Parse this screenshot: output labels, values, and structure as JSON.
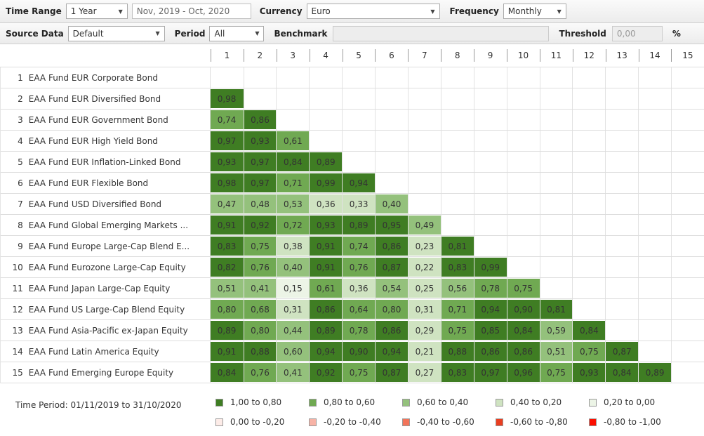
{
  "toolbar1": {
    "time_range_label": "Time Range",
    "time_range_value": "1 Year",
    "date_range_value": "Nov, 2019 - Oct, 2020",
    "currency_label": "Currency",
    "currency_value": "Euro",
    "frequency_label": "Frequency",
    "frequency_value": "Monthly"
  },
  "toolbar2": {
    "source_data_label": "Source Data",
    "source_data_value": "Default",
    "period_label": "Period",
    "period_value": "All",
    "benchmark_label": "Benchmark",
    "benchmark_value": "",
    "threshold_label": "Threshold",
    "threshold_value": "0,00",
    "threshold_unit": "%"
  },
  "band_colors": {
    "1": "#3f7d23",
    "2": "#70a952",
    "3": "#94c17c",
    "4": "#cfe3c1",
    "5": "#ecf4e6"
  },
  "matrix": {
    "column_headers": [
      "1",
      "2",
      "3",
      "4",
      "5",
      "6",
      "7",
      "8",
      "9",
      "10",
      "11",
      "12",
      "13",
      "14",
      "15"
    ],
    "rows": [
      {
        "num": "1",
        "name": "EAA Fund EUR Corporate Bond",
        "values": []
      },
      {
        "num": "2",
        "name": "EAA Fund EUR Diversified Bond",
        "values": [
          {
            "v": "0,98",
            "band": 1
          }
        ]
      },
      {
        "num": "3",
        "name": "EAA Fund EUR Government Bond",
        "values": [
          {
            "v": "0,74",
            "band": 2
          },
          {
            "v": "0,86",
            "band": 1
          }
        ]
      },
      {
        "num": "4",
        "name": "EAA Fund EUR High Yield Bond",
        "values": [
          {
            "v": "0,97",
            "band": 1
          },
          {
            "v": "0,93",
            "band": 1
          },
          {
            "v": "0,61",
            "band": 2
          }
        ]
      },
      {
        "num": "5",
        "name": "EAA Fund EUR Inflation-Linked Bond",
        "values": [
          {
            "v": "0,93",
            "band": 1
          },
          {
            "v": "0,97",
            "band": 1
          },
          {
            "v": "0,84",
            "band": 1
          },
          {
            "v": "0,89",
            "band": 1
          }
        ]
      },
      {
        "num": "6",
        "name": "EAA Fund EUR Flexible Bond",
        "values": [
          {
            "v": "0,98",
            "band": 1
          },
          {
            "v": "0,97",
            "band": 1
          },
          {
            "v": "0,71",
            "band": 2
          },
          {
            "v": "0,99",
            "band": 1
          },
          {
            "v": "0,94",
            "band": 1
          }
        ]
      },
      {
        "num": "7",
        "name": "EAA Fund USD Diversified Bond",
        "values": [
          {
            "v": "0,47",
            "band": 3
          },
          {
            "v": "0,48",
            "band": 3
          },
          {
            "v": "0,53",
            "band": 3
          },
          {
            "v": "0,36",
            "band": 4
          },
          {
            "v": "0,33",
            "band": 4
          },
          {
            "v": "0,40",
            "band": 3
          }
        ]
      },
      {
        "num": "8",
        "name": "EAA Fund Global Emerging Markets ...",
        "values": [
          {
            "v": "0,91",
            "band": 1
          },
          {
            "v": "0,92",
            "band": 1
          },
          {
            "v": "0,72",
            "band": 2
          },
          {
            "v": "0,93",
            "band": 1
          },
          {
            "v": "0,89",
            "band": 1
          },
          {
            "v": "0,95",
            "band": 1
          },
          {
            "v": "0,49",
            "band": 3
          }
        ]
      },
      {
        "num": "9",
        "name": "EAA Fund Europe Large-Cap Blend E...",
        "values": [
          {
            "v": "0,83",
            "band": 1
          },
          {
            "v": "0,75",
            "band": 2
          },
          {
            "v": "0,38",
            "band": 4
          },
          {
            "v": "0,91",
            "band": 1
          },
          {
            "v": "0,74",
            "band": 2
          },
          {
            "v": "0,86",
            "band": 1
          },
          {
            "v": "0,23",
            "band": 4
          },
          {
            "v": "0,81",
            "band": 1
          }
        ]
      },
      {
        "num": "10",
        "name": "EAA Fund Eurozone Large-Cap Equity",
        "values": [
          {
            "v": "0,82",
            "band": 1
          },
          {
            "v": "0,76",
            "band": 2
          },
          {
            "v": "0,40",
            "band": 3
          },
          {
            "v": "0,91",
            "band": 1
          },
          {
            "v": "0,76",
            "band": 2
          },
          {
            "v": "0,87",
            "band": 1
          },
          {
            "v": "0,22",
            "band": 4
          },
          {
            "v": "0,83",
            "band": 1
          },
          {
            "v": "0,99",
            "band": 1
          }
        ]
      },
      {
        "num": "11",
        "name": "EAA Fund Japan Large-Cap Equity",
        "values": [
          {
            "v": "0,51",
            "band": 3
          },
          {
            "v": "0,41",
            "band": 3
          },
          {
            "v": "0,15",
            "band": 5
          },
          {
            "v": "0,61",
            "band": 2
          },
          {
            "v": "0,36",
            "band": 4
          },
          {
            "v": "0,54",
            "band": 3
          },
          {
            "v": "0,25",
            "band": 4
          },
          {
            "v": "0,56",
            "band": 3
          },
          {
            "v": "0,78",
            "band": 2
          },
          {
            "v": "0,75",
            "band": 2
          }
        ]
      },
      {
        "num": "12",
        "name": "EAA Fund US Large-Cap Blend Equity",
        "values": [
          {
            "v": "0,80",
            "band": 2
          },
          {
            "v": "0,68",
            "band": 2
          },
          {
            "v": "0,31",
            "band": 4
          },
          {
            "v": "0,86",
            "band": 1
          },
          {
            "v": "0,64",
            "band": 2
          },
          {
            "v": "0,80",
            "band": 2
          },
          {
            "v": "0,31",
            "band": 4
          },
          {
            "v": "0,71",
            "band": 2
          },
          {
            "v": "0,94",
            "band": 1
          },
          {
            "v": "0,90",
            "band": 1
          },
          {
            "v": "0,81",
            "band": 1
          }
        ]
      },
      {
        "num": "13",
        "name": "EAA Fund Asia-Pacific ex-Japan Equity",
        "values": [
          {
            "v": "0,89",
            "band": 1
          },
          {
            "v": "0,80",
            "band": 2
          },
          {
            "v": "0,44",
            "band": 3
          },
          {
            "v": "0,89",
            "band": 1
          },
          {
            "v": "0,78",
            "band": 2
          },
          {
            "v": "0,86",
            "band": 1
          },
          {
            "v": "0,29",
            "band": 4
          },
          {
            "v": "0,75",
            "band": 2
          },
          {
            "v": "0,85",
            "band": 1
          },
          {
            "v": "0,84",
            "band": 1
          },
          {
            "v": "0,59",
            "band": 3
          },
          {
            "v": "0,84",
            "band": 1
          }
        ]
      },
      {
        "num": "14",
        "name": "EAA Fund Latin America Equity",
        "values": [
          {
            "v": "0,91",
            "band": 1
          },
          {
            "v": "0,88",
            "band": 1
          },
          {
            "v": "0,60",
            "band": 3
          },
          {
            "v": "0,94",
            "band": 1
          },
          {
            "v": "0,90",
            "band": 1
          },
          {
            "v": "0,94",
            "band": 1
          },
          {
            "v": "0,21",
            "band": 4
          },
          {
            "v": "0,88",
            "band": 1
          },
          {
            "v": "0,86",
            "band": 1
          },
          {
            "v": "0,86",
            "band": 1
          },
          {
            "v": "0,51",
            "band": 3
          },
          {
            "v": "0,75",
            "band": 2
          },
          {
            "v": "0,87",
            "band": 1
          }
        ]
      },
      {
        "num": "15",
        "name": "EAA Fund Emerging Europe Equity",
        "values": [
          {
            "v": "0,84",
            "band": 1
          },
          {
            "v": "0,76",
            "band": 2
          },
          {
            "v": "0,41",
            "band": 3
          },
          {
            "v": "0,92",
            "band": 1
          },
          {
            "v": "0,75",
            "band": 2
          },
          {
            "v": "0,87",
            "band": 1
          },
          {
            "v": "0,27",
            "band": 4
          },
          {
            "v": "0,83",
            "band": 1
          },
          {
            "v": "0,97",
            "band": 1
          },
          {
            "v": "0,96",
            "band": 1
          },
          {
            "v": "0,75",
            "band": 2
          },
          {
            "v": "0,93",
            "band": 1
          },
          {
            "v": "0,84",
            "band": 1
          },
          {
            "v": "0,89",
            "band": 1
          }
        ]
      }
    ]
  },
  "legend": {
    "time_period": "Time Period: 01/11/2019 to 31/10/2020",
    "items": [
      {
        "label": "1,00 to 0,80",
        "color": "#3f7d23"
      },
      {
        "label": "0,80 to 0,60",
        "color": "#70a952"
      },
      {
        "label": "0,60 to 0,40",
        "color": "#94c17c"
      },
      {
        "label": "0,40 to 0,20",
        "color": "#cfe3c1"
      },
      {
        "label": "0,20 to 0,00",
        "color": "#ecf4e6"
      },
      {
        "label": "0,00 to -0,20",
        "color": "#fdece8"
      },
      {
        "label": "-0,20 to -0,40",
        "color": "#f7b3a6"
      },
      {
        "label": "-0,40 to -0,60",
        "color": "#f2745a"
      },
      {
        "label": "-0,60 to -0,80",
        "color": "#e93e20"
      },
      {
        "label": "-0,80 to -1,00",
        "color": "#fb0f00"
      }
    ]
  }
}
